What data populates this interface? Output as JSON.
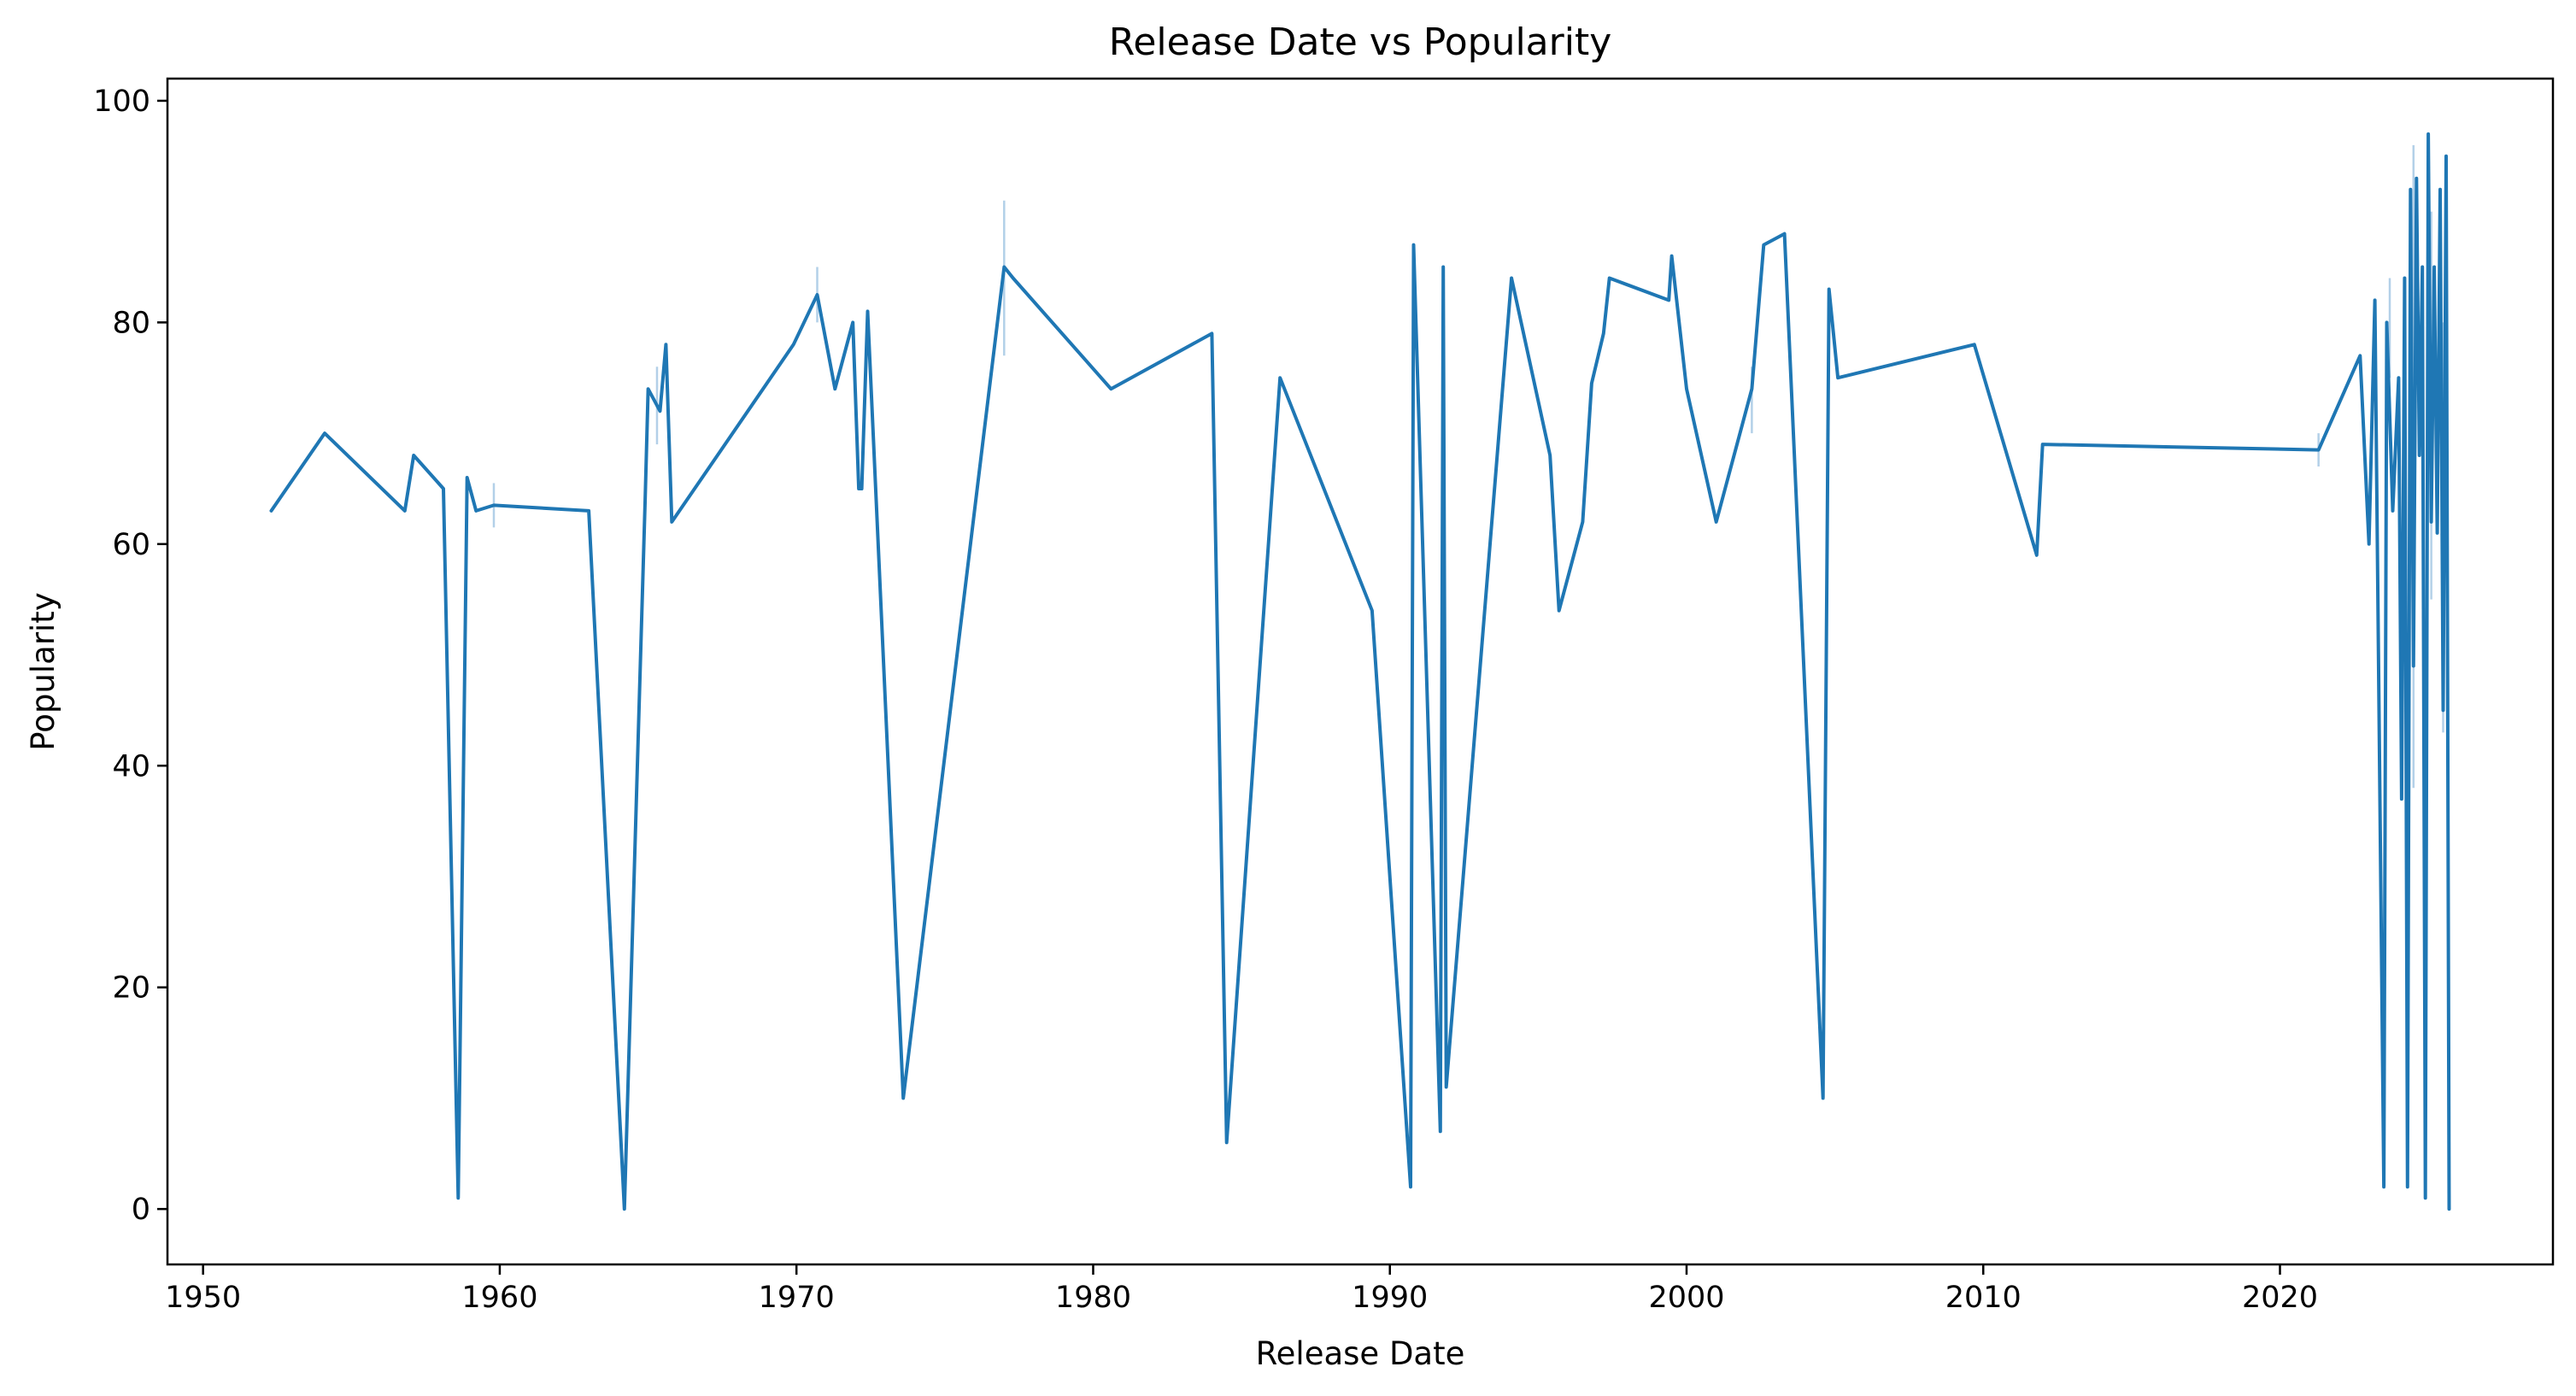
{
  "chart_data": {
    "type": "line",
    "title": "Release Date vs Popularity",
    "xlabel": "Release Date",
    "ylabel": "Popularity",
    "xlim": [
      1948.8,
      2029.2
    ],
    "ylim": [
      -5,
      102
    ],
    "x_ticks": [
      1950,
      1960,
      1970,
      1980,
      1990,
      2000,
      2010,
      2020
    ],
    "y_ticks": [
      0,
      20,
      40,
      60,
      80,
      100
    ],
    "grid": false,
    "legend": "none",
    "colors": {
      "line": "#1f77b4",
      "band": "#a6c8e5",
      "axes": "#000000",
      "background": "#ffffff"
    },
    "series": [
      {
        "values": [
          [
            1952.3,
            63
          ],
          [
            1954.1,
            70
          ],
          [
            1956.8,
            63
          ],
          [
            1957.1,
            68
          ],
          [
            1958.1,
            65
          ],
          [
            1958.6,
            1
          ],
          [
            1958.9,
            66
          ],
          [
            1959.2,
            63
          ],
          [
            1959.8,
            63.5
          ],
          [
            1963.0,
            63
          ],
          [
            1964.2,
            0
          ],
          [
            1964.9,
            64
          ],
          [
            1965.0,
            74
          ],
          [
            1965.4,
            72
          ],
          [
            1965.6,
            78
          ],
          [
            1965.8,
            62
          ],
          [
            1969.9,
            78
          ],
          [
            1970.7,
            82.5
          ],
          [
            1971.3,
            74
          ],
          [
            1971.9,
            80
          ],
          [
            1972.1,
            65
          ],
          [
            1972.2,
            65
          ],
          [
            1972.4,
            81
          ],
          [
            1973.6,
            10
          ],
          [
            1976.5,
            74
          ],
          [
            1977.0,
            85
          ],
          [
            1977.3,
            84
          ],
          [
            1980.6,
            74
          ],
          [
            1984.0,
            79
          ],
          [
            1984.5,
            6
          ],
          [
            1986.3,
            75
          ],
          [
            1989.4,
            54
          ],
          [
            1990.7,
            2
          ],
          [
            1990.8,
            87
          ],
          [
            1991.7,
            7
          ],
          [
            1991.8,
            85
          ],
          [
            1991.9,
            11
          ],
          [
            1994.1,
            84
          ],
          [
            1995.4,
            68
          ],
          [
            1995.7,
            54
          ],
          [
            1996.5,
            62
          ],
          [
            1996.8,
            74.5
          ],
          [
            1997.2,
            79
          ],
          [
            1997.4,
            84
          ],
          [
            1999.4,
            82
          ],
          [
            1999.5,
            86
          ],
          [
            2000.0,
            74
          ],
          [
            2001.0,
            62
          ],
          [
            2002.2,
            74
          ],
          [
            2002.6,
            87
          ],
          [
            2003.3,
            88
          ],
          [
            2004.6,
            10
          ],
          [
            2004.8,
            83
          ],
          [
            2005.1,
            75
          ],
          [
            2009.7,
            78
          ],
          [
            2011.8,
            59
          ],
          [
            2012.0,
            69
          ],
          [
            2021.3,
            68.5
          ],
          [
            2022.7,
            77
          ],
          [
            2023.0,
            60
          ],
          [
            2023.2,
            82
          ],
          [
            2023.5,
            2
          ],
          [
            2023.6,
            80
          ],
          [
            2023.8,
            63
          ],
          [
            2024.0,
            75
          ],
          [
            2024.1,
            37
          ],
          [
            2024.2,
            84
          ],
          [
            2024.3,
            2
          ],
          [
            2024.4,
            92
          ],
          [
            2024.5,
            49
          ],
          [
            2024.6,
            93
          ],
          [
            2024.7,
            68
          ],
          [
            2024.8,
            85
          ],
          [
            2024.9,
            1
          ],
          [
            2025.0,
            97
          ],
          [
            2025.1,
            62
          ],
          [
            2025.2,
            85
          ],
          [
            2025.3,
            61
          ],
          [
            2025.4,
            92
          ],
          [
            2025.5,
            45
          ],
          [
            2025.6,
            95
          ],
          [
            2025.7,
            0
          ]
        ],
        "band": [
          [
            1959.8,
            61.5,
            65.5
          ],
          [
            1965.3,
            69,
            76
          ],
          [
            1970.7,
            80,
            85
          ],
          [
            1977.0,
            77,
            91
          ],
          [
            2002.2,
            70,
            76
          ],
          [
            2021.3,
            67,
            70
          ],
          [
            2023.7,
            75,
            84
          ],
          [
            2024.5,
            38,
            96
          ],
          [
            2025.1,
            55,
            90
          ],
          [
            2025.5,
            43,
            80
          ]
        ]
      }
    ]
  }
}
